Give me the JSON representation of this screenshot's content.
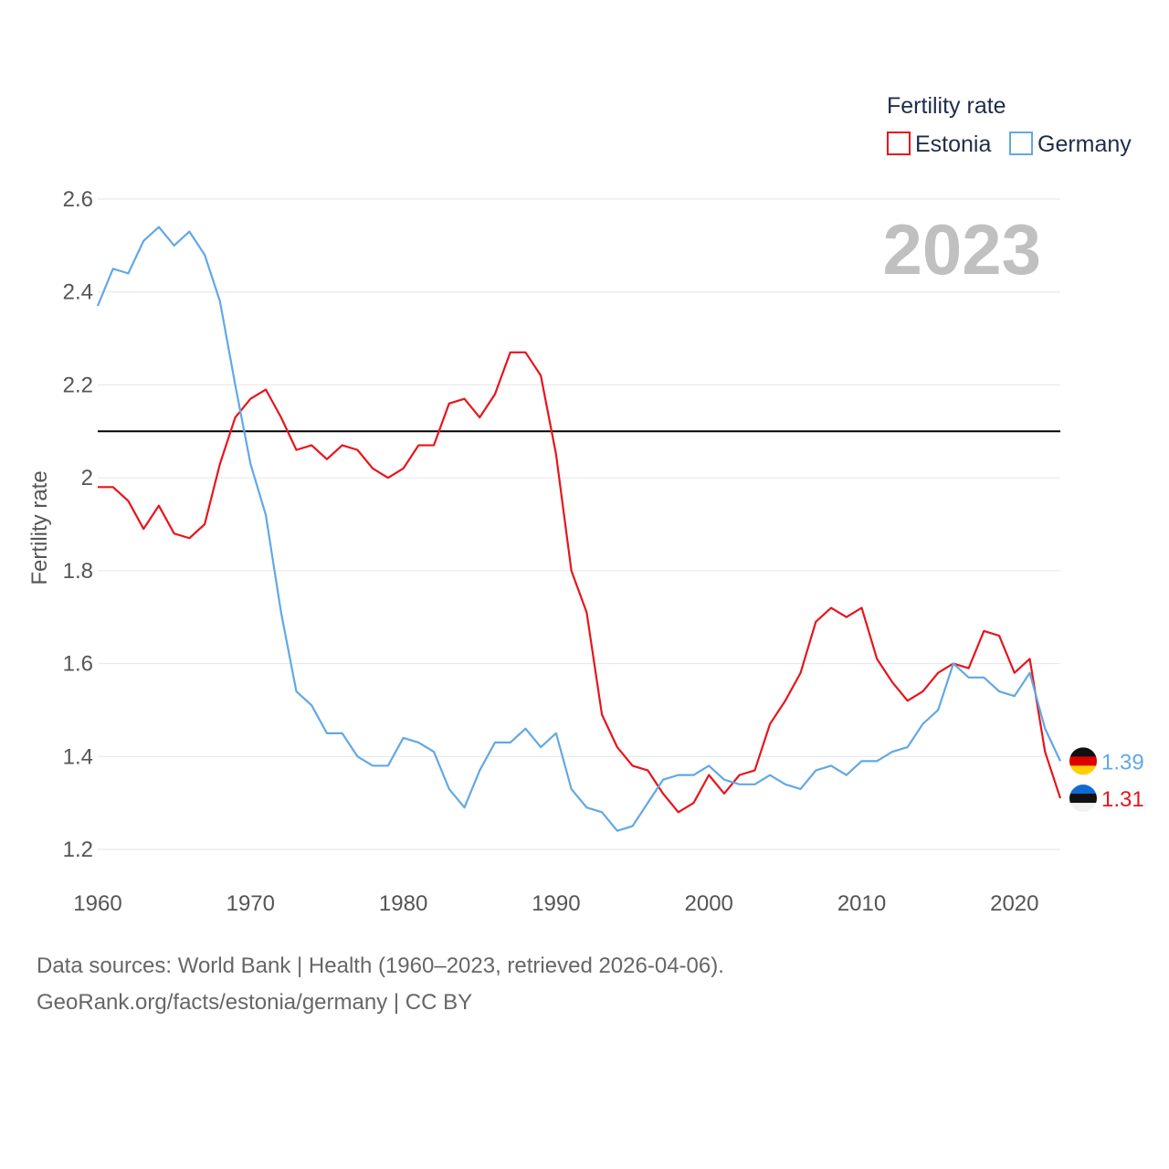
{
  "chart_data": {
    "type": "line",
    "legend_title": "Fertility rate",
    "ylabel": "Fertility rate",
    "xlabel": "",
    "current_year": "2023",
    "xlim": [
      1960,
      2023
    ],
    "ylim": [
      1.2,
      2.6
    ],
    "x_ticks": [
      1960,
      1970,
      1980,
      1990,
      2000,
      2010,
      2020
    ],
    "y_ticks": [
      1.2,
      1.4,
      1.6,
      1.8,
      2,
      2.2,
      2.4,
      2.6
    ],
    "y_tick_labels": [
      "1.2",
      "1.4",
      "1.6",
      "1.8",
      "2",
      "2.2",
      "2.4",
      "2.6"
    ],
    "reference_line": 2.1,
    "legend_position": "top-right",
    "x": [
      1960,
      1961,
      1962,
      1963,
      1964,
      1965,
      1966,
      1967,
      1968,
      1969,
      1970,
      1971,
      1972,
      1973,
      1974,
      1975,
      1976,
      1977,
      1978,
      1979,
      1980,
      1981,
      1982,
      1983,
      1984,
      1985,
      1986,
      1987,
      1988,
      1989,
      1990,
      1991,
      1992,
      1993,
      1994,
      1995,
      1996,
      1997,
      1998,
      1999,
      2000,
      2001,
      2002,
      2003,
      2004,
      2005,
      2006,
      2007,
      2008,
      2009,
      2010,
      2011,
      2012,
      2013,
      2014,
      2015,
      2016,
      2017,
      2018,
      2019,
      2020,
      2021,
      2022,
      2023
    ],
    "series": [
      {
        "name": "Estonia",
        "color": "#e8141b",
        "end_label": "1.31",
        "flag": "estonia-flag",
        "values": [
          1.98,
          1.98,
          1.95,
          1.89,
          1.94,
          1.88,
          1.87,
          1.9,
          2.03,
          2.13,
          2.17,
          2.19,
          2.13,
          2.06,
          2.07,
          2.04,
          2.07,
          2.06,
          2.02,
          2.0,
          2.02,
          2.07,
          2.07,
          2.16,
          2.17,
          2.13,
          2.18,
          2.27,
          2.27,
          2.22,
          2.05,
          1.8,
          1.71,
          1.49,
          1.42,
          1.38,
          1.37,
          1.32,
          1.28,
          1.3,
          1.36,
          1.32,
          1.36,
          1.37,
          1.47,
          1.52,
          1.58,
          1.69,
          1.72,
          1.7,
          1.72,
          1.61,
          1.56,
          1.52,
          1.54,
          1.58,
          1.6,
          1.59,
          1.67,
          1.66,
          1.58,
          1.61,
          1.41,
          1.31
        ]
      },
      {
        "name": "Germany",
        "color": "#62a8e5",
        "end_label": "1.39",
        "flag": "germany-flag",
        "values": [
          2.37,
          2.45,
          2.44,
          2.51,
          2.54,
          2.5,
          2.53,
          2.48,
          2.38,
          2.2,
          2.03,
          1.92,
          1.71,
          1.54,
          1.51,
          1.45,
          1.45,
          1.4,
          1.38,
          1.38,
          1.44,
          1.43,
          1.41,
          1.33,
          1.29,
          1.37,
          1.43,
          1.43,
          1.46,
          1.42,
          1.45,
          1.33,
          1.29,
          1.28,
          1.24,
          1.25,
          1.3,
          1.35,
          1.36,
          1.36,
          1.38,
          1.35,
          1.34,
          1.34,
          1.36,
          1.34,
          1.33,
          1.37,
          1.38,
          1.36,
          1.39,
          1.39,
          1.41,
          1.42,
          1.47,
          1.5,
          1.6,
          1.57,
          1.57,
          1.54,
          1.53,
          1.58,
          1.46,
          1.39
        ]
      }
    ]
  },
  "footer": {
    "source": "Data sources: World Bank | Health (1960–2023, retrieved 2026-04-06).",
    "site": "GeoRank.org/facts/estonia/germany | CC BY"
  }
}
